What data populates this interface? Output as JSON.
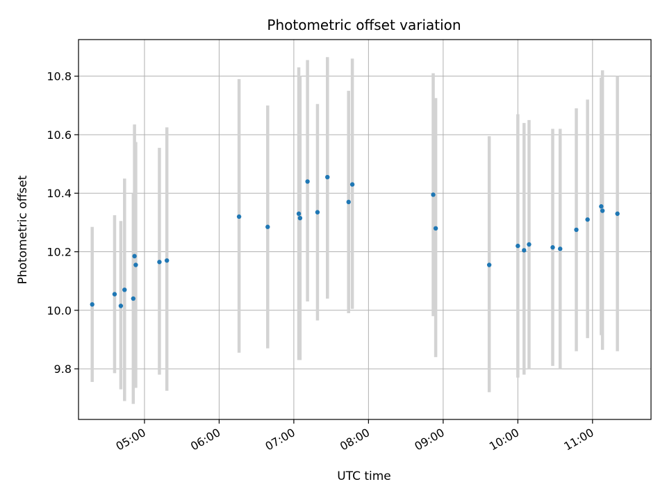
{
  "chart_data": {
    "type": "scatter",
    "title": "Photometric offset variation",
    "xlabel": "UTC time",
    "ylabel": "Photometric offset",
    "x_axis_type": "time",
    "xlim": [
      "04:07",
      "11:47"
    ],
    "ylim": [
      9.627,
      10.925
    ],
    "xticks": [
      "05:00",
      "06:00",
      "07:00",
      "08:00",
      "09:00",
      "10:00",
      "11:00"
    ],
    "yticks": [
      9.8,
      10.0,
      10.2,
      10.4,
      10.6,
      10.8
    ],
    "ytick_labels": [
      "9.8",
      "10.0",
      "10.2",
      "10.4",
      "10.6",
      "10.8"
    ],
    "grid": true,
    "point_color": "#1f77b4",
    "errorbar_color": "#d3d3d3",
    "series": [
      {
        "points": [
          {
            "x": "04:18",
            "y": 10.02,
            "ylow": 9.755,
            "yhigh": 10.285
          },
          {
            "x": "04:36",
            "y": 10.055,
            "ylow": 9.785,
            "yhigh": 10.325
          },
          {
            "x": "04:41",
            "y": 10.015,
            "ylow": 9.73,
            "yhigh": 10.305
          },
          {
            "x": "04:44",
            "y": 10.07,
            "ylow": 9.69,
            "yhigh": 10.45
          },
          {
            "x": "04:51",
            "y": 10.04,
            "ylow": 9.68,
            "yhigh": 10.4
          },
          {
            "x": "04:52",
            "y": 10.185,
            "ylow": 9.74,
            "yhigh": 10.635
          },
          {
            "x": "04:53",
            "y": 10.155,
            "ylow": 9.735,
            "yhigh": 10.575
          },
          {
            "x": "05:12",
            "y": 10.165,
            "ylow": 9.78,
            "yhigh": 10.555
          },
          {
            "x": "05:18",
            "y": 10.17,
            "ylow": 9.725,
            "yhigh": 10.625
          },
          {
            "x": "06:16",
            "y": 10.32,
            "ylow": 9.855,
            "yhigh": 10.79
          },
          {
            "x": "06:39",
            "y": 10.285,
            "ylow": 9.87,
            "yhigh": 10.7
          },
          {
            "x": "07:04",
            "y": 10.33,
            "ylow": 9.83,
            "yhigh": 10.83
          },
          {
            "x": "07:05",
            "y": 10.315,
            "ylow": 9.83,
            "yhigh": 10.8
          },
          {
            "x": "07:11",
            "y": 10.44,
            "ylow": 10.03,
            "yhigh": 10.855
          },
          {
            "x": "07:19",
            "y": 10.335,
            "ylow": 9.965,
            "yhigh": 10.705
          },
          {
            "x": "07:27",
            "y": 10.455,
            "ylow": 10.04,
            "yhigh": 10.865
          },
          {
            "x": "07:44",
            "y": 10.37,
            "ylow": 9.99,
            "yhigh": 10.75
          },
          {
            "x": "07:47",
            "y": 10.43,
            "ylow": 10.005,
            "yhigh": 10.86
          },
          {
            "x": "08:52",
            "y": 10.395,
            "ylow": 9.98,
            "yhigh": 10.81
          },
          {
            "x": "08:54",
            "y": 10.28,
            "ylow": 9.84,
            "yhigh": 10.725
          },
          {
            "x": "09:37",
            "y": 10.155,
            "ylow": 9.72,
            "yhigh": 10.595
          },
          {
            "x": "10:00",
            "y": 10.22,
            "ylow": 9.77,
            "yhigh": 10.67
          },
          {
            "x": "10:05",
            "y": 10.205,
            "ylow": 9.78,
            "yhigh": 10.64
          },
          {
            "x": "10:09",
            "y": 10.225,
            "ylow": 9.8,
            "yhigh": 10.65
          },
          {
            "x": "10:28",
            "y": 10.215,
            "ylow": 9.81,
            "yhigh": 10.62
          },
          {
            "x": "10:34",
            "y": 10.21,
            "ylow": 9.8,
            "yhigh": 10.62
          },
          {
            "x": "10:47",
            "y": 10.275,
            "ylow": 9.86,
            "yhigh": 10.69
          },
          {
            "x": "10:56",
            "y": 10.31,
            "ylow": 9.905,
            "yhigh": 10.72
          },
          {
            "x": "11:07",
            "y": 10.355,
            "ylow": 9.915,
            "yhigh": 10.795
          },
          {
            "x": "11:08",
            "y": 10.34,
            "ylow": 9.865,
            "yhigh": 10.82
          },
          {
            "x": "11:20",
            "y": 10.33,
            "ylow": 9.86,
            "yhigh": 10.8
          }
        ]
      }
    ]
  }
}
